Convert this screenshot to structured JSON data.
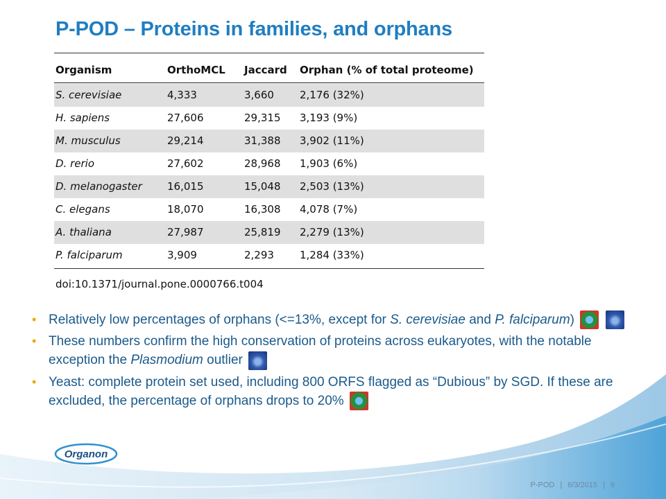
{
  "slide": {
    "title": "P-POD – Proteins in families, and orphans"
  },
  "table": {
    "headers": [
      "Organism",
      "OrthoMCL",
      "Jaccard",
      "Orphan (% of total proteome)"
    ],
    "rows": [
      [
        "S. cerevisiae",
        "4,333",
        "3,660",
        "2,176 (32%)"
      ],
      [
        "H. sapiens",
        "27,606",
        "29,315",
        "3,193 (9%)"
      ],
      [
        "M. musculus",
        "29,214",
        "31,388",
        "3,902 (11%)"
      ],
      [
        "D. rerio",
        "27,602",
        "28,968",
        "1,903 (6%)"
      ],
      [
        "D. melanogaster",
        "16,015",
        "15,048",
        "2,503 (13%)"
      ],
      [
        "C. elegans",
        "18,070",
        "16,308",
        "4,078 (7%)"
      ],
      [
        "A. thaliana",
        "27,987",
        "25,819",
        "2,279 (13%)"
      ],
      [
        "P. falciparum",
        "3,909",
        "2,293",
        "1,284 (33%)"
      ]
    ],
    "doi": "doi:10.1371/journal.pone.0000766.t004"
  },
  "bullets": {
    "b1_a": "Relatively low percentages of orphans (<=13%, except for ",
    "b1_i1": "S. cerevisiae",
    "b1_b": " and ",
    "b1_i2": "P. falciparum",
    "b1_c": ")",
    "b2_a": "These numbers confirm the high conservation of proteins across eukaryotes, with the notable exception the ",
    "b2_i": "Plasmodium",
    "b2_b": " outlier",
    "b3": "Yeast: complete protein set used, including 800 ORFS flagged as “Dubious” by SGD. If these are excluded, the percentage of orphans drops to 20%",
    "bullet_glyph": "•"
  },
  "logo": {
    "text": "Organon"
  },
  "footer": {
    "name": "P-POD",
    "sep": "|",
    "date": "6/3/2015",
    "page": "9"
  },
  "colors": {
    "title": "#1f7ec1",
    "bullet_text": "#1a5a8c",
    "bullet_dot": "#f0a800",
    "shade_row": "#dfdfdf"
  },
  "icons": [
    "yeast-cell-icon",
    "plasmodium-icon"
  ]
}
